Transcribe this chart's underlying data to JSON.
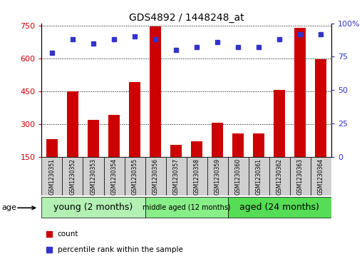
{
  "title": "GDS4892 / 1448248_at",
  "samples": [
    "GSM1230351",
    "GSM1230352",
    "GSM1230353",
    "GSM1230354",
    "GSM1230355",
    "GSM1230356",
    "GSM1230357",
    "GSM1230358",
    "GSM1230359",
    "GSM1230360",
    "GSM1230361",
    "GSM1230362",
    "GSM1230363",
    "GSM1230364"
  ],
  "counts": [
    230,
    450,
    320,
    340,
    490,
    745,
    205,
    220,
    305,
    255,
    255,
    455,
    740,
    595
  ],
  "percentiles": [
    78,
    88,
    85,
    88,
    90,
    88,
    80,
    82,
    86,
    82,
    82,
    88,
    92,
    92
  ],
  "ylim_left": [
    150,
    760
  ],
  "ylim_right": [
    0,
    100
  ],
  "yticks_left": [
    150,
    300,
    450,
    600,
    750
  ],
  "yticks_right": [
    0,
    25,
    50,
    75,
    100
  ],
  "bar_color": "#cc0000",
  "dot_color": "#3333cc",
  "groups": [
    {
      "label": "young (2 months)",
      "start": 0,
      "end": 5,
      "color": "#b3f0b3",
      "fontsize": 9
    },
    {
      "label": "middle aged (12 months)",
      "start": 5,
      "end": 9,
      "color": "#88ee88",
      "fontsize": 7
    },
    {
      "label": "aged (24 months)",
      "start": 9,
      "end": 14,
      "color": "#55dd55",
      "fontsize": 9
    }
  ],
  "age_label": "age",
  "legend_count": "count",
  "legend_percentile": "percentile rank within the sample",
  "background_color": "#ffffff",
  "sample_box_color": "#d0d0d0",
  "title_fontsize": 10,
  "tick_fontsize": 8,
  "sample_fontsize": 5.5
}
